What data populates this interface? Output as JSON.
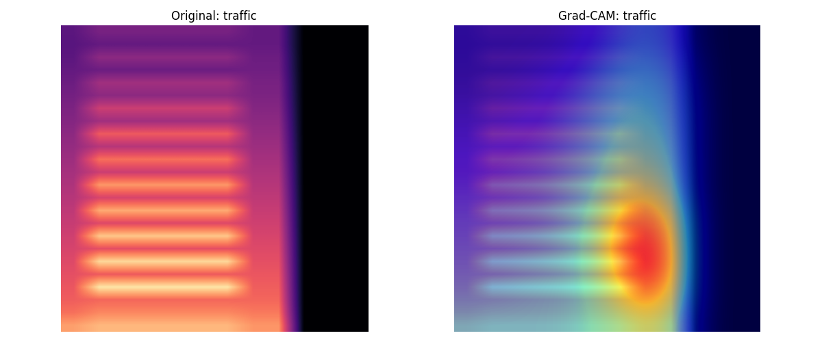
{
  "chart_data": [
    {
      "type": "heatmap",
      "title": "Original: traffic",
      "color": "magma",
      "clim": [
        0,
        1
      ],
      "tick_labels": false,
      "cells": [
        [
          0.28,
          0.35,
          0.35,
          0.35,
          0.35,
          0.35,
          0.35,
          0.3,
          0.3,
          0,
          0,
          0
        ],
        [
          0.27,
          0.3,
          0.3,
          0.3,
          0.3,
          0.3,
          0.3,
          0.3,
          0.3,
          0,
          0,
          0
        ],
        [
          0.28,
          0.4,
          0.4,
          0.4,
          0.4,
          0.4,
          0.4,
          0.32,
          0.32,
          0,
          0,
          0
        ],
        [
          0.3,
          0.32,
          0.32,
          0.32,
          0.32,
          0.32,
          0.32,
          0.33,
          0.33,
          0,
          0,
          0
        ],
        [
          0.32,
          0.45,
          0.45,
          0.45,
          0.45,
          0.45,
          0.45,
          0.35,
          0.35,
          0,
          0,
          0
        ],
        [
          0.34,
          0.4,
          0.4,
          0.4,
          0.4,
          0.4,
          0.4,
          0.36,
          0.36,
          0,
          0,
          0
        ],
        [
          0.36,
          0.55,
          0.55,
          0.55,
          0.55,
          0.55,
          0.55,
          0.38,
          0.38,
          0,
          0,
          0
        ],
        [
          0.38,
          0.45,
          0.45,
          0.45,
          0.45,
          0.45,
          0.45,
          0.4,
          0.4,
          0,
          0,
          0
        ],
        [
          0.4,
          0.65,
          0.65,
          0.65,
          0.65,
          0.65,
          0.65,
          0.42,
          0.42,
          0,
          0,
          0
        ],
        [
          0.42,
          0.5,
          0.5,
          0.5,
          0.5,
          0.5,
          0.5,
          0.44,
          0.44,
          0,
          0,
          0
        ],
        [
          0.44,
          0.7,
          0.7,
          0.7,
          0.7,
          0.7,
          0.7,
          0.46,
          0.46,
          0,
          0,
          0
        ],
        [
          0.46,
          0.55,
          0.55,
          0.55,
          0.55,
          0.55,
          0.55,
          0.48,
          0.48,
          0,
          0,
          0
        ],
        [
          0.48,
          0.78,
          0.78,
          0.78,
          0.78,
          0.78,
          0.78,
          0.5,
          0.5,
          0,
          0,
          0
        ],
        [
          0.5,
          0.58,
          0.58,
          0.58,
          0.58,
          0.58,
          0.58,
          0.52,
          0.52,
          0,
          0,
          0
        ],
        [
          0.52,
          0.82,
          0.82,
          0.82,
          0.82,
          0.82,
          0.82,
          0.54,
          0.54,
          0,
          0,
          0
        ],
        [
          0.54,
          0.6,
          0.6,
          0.6,
          0.6,
          0.6,
          0.6,
          0.56,
          0.56,
          0,
          0,
          0
        ],
        [
          0.56,
          0.88,
          0.88,
          0.88,
          0.88,
          0.88,
          0.88,
          0.58,
          0.58,
          0,
          0,
          0
        ],
        [
          0.58,
          0.62,
          0.62,
          0.62,
          0.62,
          0.62,
          0.62,
          0.6,
          0.6,
          0,
          0,
          0
        ],
        [
          0.6,
          0.92,
          0.92,
          0.92,
          0.92,
          0.92,
          0.92,
          0.62,
          0.62,
          0,
          0,
          0
        ],
        [
          0.62,
          0.65,
          0.65,
          0.65,
          0.65,
          0.65,
          0.65,
          0.64,
          0.64,
          0,
          0,
          0
        ],
        [
          0.64,
          0.95,
          0.95,
          0.95,
          0.95,
          0.95,
          0.95,
          0.66,
          0.66,
          0,
          0,
          0
        ],
        [
          0.66,
          0.68,
          0.68,
          0.68,
          0.68,
          0.68,
          0.68,
          0.68,
          0.68,
          0,
          0,
          0
        ],
        [
          0.7,
          0.75,
          0.75,
          0.75,
          0.75,
          0.75,
          0.75,
          0.72,
          0.72,
          0,
          0,
          0
        ],
        [
          0.8,
          0.85,
          0.85,
          0.85,
          0.85,
          0.85,
          0.85,
          0.78,
          0.78,
          0,
          0,
          0
        ]
      ]
    },
    {
      "type": "heatmap_overlay",
      "title": "Grad-CAM: traffic",
      "color": "magma",
      "clim": [
        0,
        1
      ],
      "tick_labels": false,
      "cells": [
        [
          0.28,
          0.35,
          0.35,
          0.35,
          0.35,
          0.35,
          0.35,
          0.3,
          0.3,
          0,
          0,
          0
        ],
        [
          0.27,
          0.3,
          0.3,
          0.3,
          0.3,
          0.3,
          0.3,
          0.3,
          0.3,
          0,
          0,
          0
        ],
        [
          0.28,
          0.4,
          0.4,
          0.4,
          0.4,
          0.4,
          0.4,
          0.32,
          0.32,
          0,
          0,
          0
        ],
        [
          0.3,
          0.32,
          0.32,
          0.32,
          0.32,
          0.32,
          0.32,
          0.33,
          0.33,
          0,
          0,
          0
        ],
        [
          0.32,
          0.45,
          0.45,
          0.45,
          0.45,
          0.45,
          0.45,
          0.35,
          0.35,
          0,
          0,
          0
        ],
        [
          0.34,
          0.4,
          0.4,
          0.4,
          0.4,
          0.4,
          0.4,
          0.36,
          0.36,
          0,
          0,
          0
        ],
        [
          0.36,
          0.55,
          0.55,
          0.55,
          0.55,
          0.55,
          0.55,
          0.38,
          0.38,
          0,
          0,
          0
        ],
        [
          0.38,
          0.45,
          0.45,
          0.45,
          0.45,
          0.45,
          0.45,
          0.4,
          0.4,
          0,
          0,
          0
        ],
        [
          0.4,
          0.65,
          0.65,
          0.65,
          0.65,
          0.65,
          0.65,
          0.42,
          0.42,
          0,
          0,
          0
        ],
        [
          0.42,
          0.5,
          0.5,
          0.5,
          0.5,
          0.5,
          0.5,
          0.44,
          0.44,
          0,
          0,
          0
        ],
        [
          0.44,
          0.7,
          0.7,
          0.7,
          0.7,
          0.7,
          0.7,
          0.46,
          0.46,
          0,
          0,
          0
        ],
        [
          0.46,
          0.55,
          0.55,
          0.55,
          0.55,
          0.55,
          0.55,
          0.48,
          0.48,
          0,
          0,
          0
        ],
        [
          0.48,
          0.78,
          0.78,
          0.78,
          0.78,
          0.78,
          0.78,
          0.5,
          0.5,
          0,
          0,
          0
        ],
        [
          0.5,
          0.58,
          0.58,
          0.58,
          0.58,
          0.58,
          0.58,
          0.52,
          0.52,
          0,
          0,
          0
        ],
        [
          0.52,
          0.82,
          0.82,
          0.82,
          0.82,
          0.82,
          0.82,
          0.54,
          0.54,
          0,
          0,
          0
        ],
        [
          0.54,
          0.6,
          0.6,
          0.6,
          0.6,
          0.6,
          0.6,
          0.56,
          0.56,
          0,
          0,
          0
        ],
        [
          0.56,
          0.88,
          0.88,
          0.88,
          0.88,
          0.88,
          0.88,
          0.58,
          0.58,
          0,
          0,
          0
        ],
        [
          0.58,
          0.62,
          0.62,
          0.62,
          0.62,
          0.62,
          0.62,
          0.6,
          0.6,
          0,
          0,
          0
        ],
        [
          0.6,
          0.92,
          0.92,
          0.92,
          0.92,
          0.92,
          0.92,
          0.62,
          0.62,
          0,
          0,
          0
        ],
        [
          0.62,
          0.65,
          0.65,
          0.65,
          0.65,
          0.65,
          0.65,
          0.64,
          0.64,
          0,
          0,
          0
        ],
        [
          0.64,
          0.95,
          0.95,
          0.95,
          0.95,
          0.95,
          0.95,
          0.66,
          0.66,
          0,
          0,
          0
        ],
        [
          0.66,
          0.68,
          0.68,
          0.68,
          0.68,
          0.68,
          0.68,
          0.68,
          0.68,
          0,
          0,
          0
        ],
        [
          0.7,
          0.75,
          0.75,
          0.75,
          0.75,
          0.75,
          0.75,
          0.72,
          0.72,
          0,
          0,
          0
        ],
        [
          0.8,
          0.85,
          0.85,
          0.85,
          0.85,
          0.85,
          0.85,
          0.78,
          0.78,
          0,
          0,
          0
        ]
      ],
      "overlay": [
        [
          0.05,
          0.05,
          0.05,
          0.05,
          0.08,
          0.12,
          0.2,
          0.25,
          0.2,
          0.05,
          0,
          0
        ],
        [
          0.05,
          0.05,
          0.05,
          0.08,
          0.1,
          0.18,
          0.28,
          0.3,
          0.25,
          0.08,
          0,
          0
        ],
        [
          0.05,
          0.05,
          0.08,
          0.1,
          0.15,
          0.25,
          0.32,
          0.35,
          0.3,
          0.1,
          0,
          0
        ],
        [
          0.08,
          0.08,
          0.1,
          0.12,
          0.2,
          0.28,
          0.36,
          0.38,
          0.32,
          0.12,
          0,
          0
        ],
        [
          0.1,
          0.1,
          0.12,
          0.15,
          0.22,
          0.3,
          0.4,
          0.42,
          0.35,
          0.12,
          0,
          0
        ],
        [
          0.12,
          0.12,
          0.15,
          0.18,
          0.25,
          0.32,
          0.45,
          0.48,
          0.38,
          0.12,
          0,
          0
        ],
        [
          0.15,
          0.15,
          0.18,
          0.2,
          0.28,
          0.36,
          0.55,
          0.6,
          0.45,
          0.12,
          0,
          0
        ],
        [
          0.18,
          0.18,
          0.2,
          0.22,
          0.3,
          0.4,
          0.7,
          0.8,
          0.6,
          0.15,
          0,
          0
        ],
        [
          0.2,
          0.2,
          0.22,
          0.25,
          0.32,
          0.42,
          0.8,
          0.95,
          0.7,
          0.15,
          0,
          0
        ],
        [
          0.22,
          0.22,
          0.25,
          0.28,
          0.32,
          0.42,
          0.75,
          1.0,
          0.72,
          0.15,
          0,
          0
        ],
        [
          0.25,
          0.25,
          0.28,
          0.3,
          0.32,
          0.4,
          0.6,
          0.8,
          0.6,
          0.15,
          0,
          0
        ],
        [
          0.3,
          0.3,
          0.3,
          0.3,
          0.32,
          0.38,
          0.45,
          0.55,
          0.45,
          0.12,
          0,
          0
        ]
      ]
    }
  ]
}
